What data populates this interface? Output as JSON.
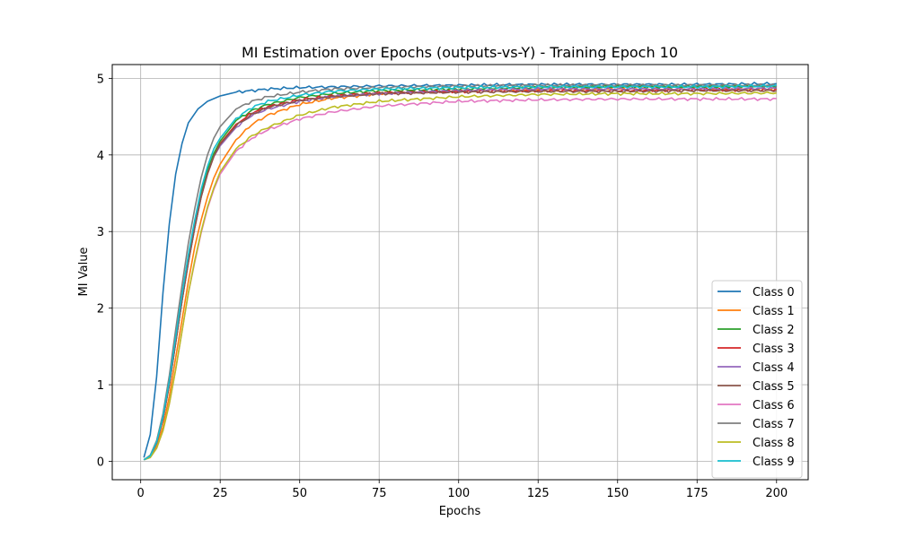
{
  "chart_data": {
    "type": "line",
    "title": "MI Estimation over Epochs (outputs-vs-Y) - Training Epoch 10",
    "xlabel": "Epochs",
    "ylabel": "MI Value",
    "xlim": [
      -8.95,
      209.95
    ],
    "ylim": [
      -0.24,
      5.18
    ],
    "xticks": [
      0,
      25,
      50,
      75,
      100,
      125,
      150,
      175,
      200
    ],
    "yticks": [
      0,
      1,
      2,
      3,
      4,
      5
    ],
    "grid": true,
    "legend_position": "lower-right",
    "x_range": [
      1,
      200
    ],
    "series": [
      {
        "name": "Class 0",
        "color": "#1f77b4",
        "values": [
          [
            1,
            0.05
          ],
          [
            3,
            0.35
          ],
          [
            5,
            1.1
          ],
          [
            7,
            2.2
          ],
          [
            9,
            3.1
          ],
          [
            11,
            3.75
          ],
          [
            13,
            4.15
          ],
          [
            15,
            4.42
          ],
          [
            18,
            4.6
          ],
          [
            21,
            4.7
          ],
          [
            25,
            4.77
          ],
          [
            30,
            4.82
          ],
          [
            40,
            4.86
          ],
          [
            50,
            4.88
          ],
          [
            75,
            4.9
          ],
          [
            100,
            4.91
          ],
          [
            125,
            4.92
          ],
          [
            150,
            4.92
          ],
          [
            175,
            4.92
          ],
          [
            200,
            4.93
          ]
        ]
      },
      {
        "name": "Class 1",
        "color": "#ff7f0e",
        "values": [
          [
            1,
            0.02
          ],
          [
            3,
            0.06
          ],
          [
            5,
            0.2
          ],
          [
            7,
            0.45
          ],
          [
            9,
            0.85
          ],
          [
            11,
            1.35
          ],
          [
            13,
            1.85
          ],
          [
            15,
            2.35
          ],
          [
            17,
            2.8
          ],
          [
            19,
            3.15
          ],
          [
            21,
            3.45
          ],
          [
            23,
            3.7
          ],
          [
            25,
            3.88
          ],
          [
            30,
            4.2
          ],
          [
            35,
            4.4
          ],
          [
            40,
            4.52
          ],
          [
            50,
            4.66
          ],
          [
            60,
            4.74
          ],
          [
            75,
            4.8
          ],
          [
            100,
            4.84
          ],
          [
            125,
            4.85
          ],
          [
            150,
            4.86
          ],
          [
            175,
            4.86
          ],
          [
            200,
            4.86
          ]
        ]
      },
      {
        "name": "Class 2",
        "color": "#2ca02c",
        "values": [
          [
            1,
            0.02
          ],
          [
            3,
            0.07
          ],
          [
            5,
            0.24
          ],
          [
            7,
            0.55
          ],
          [
            9,
            1.0
          ],
          [
            11,
            1.55
          ],
          [
            13,
            2.1
          ],
          [
            15,
            2.65
          ],
          [
            17,
            3.1
          ],
          [
            19,
            3.5
          ],
          [
            21,
            3.8
          ],
          [
            23,
            4.02
          ],
          [
            25,
            4.18
          ],
          [
            30,
            4.45
          ],
          [
            35,
            4.58
          ],
          [
            40,
            4.66
          ],
          [
            50,
            4.75
          ],
          [
            60,
            4.8
          ],
          [
            75,
            4.84
          ],
          [
            100,
            4.86
          ],
          [
            125,
            4.88
          ],
          [
            150,
            4.89
          ],
          [
            175,
            4.89
          ],
          [
            200,
            4.9
          ]
        ]
      },
      {
        "name": "Class 3",
        "color": "#d62728",
        "values": [
          [
            1,
            0.02
          ],
          [
            3,
            0.07
          ],
          [
            5,
            0.24
          ],
          [
            7,
            0.55
          ],
          [
            9,
            1.0
          ],
          [
            11,
            1.55
          ],
          [
            13,
            2.1
          ],
          [
            15,
            2.6
          ],
          [
            17,
            3.05
          ],
          [
            19,
            3.45
          ],
          [
            21,
            3.75
          ],
          [
            23,
            3.98
          ],
          [
            25,
            4.15
          ],
          [
            30,
            4.4
          ],
          [
            35,
            4.55
          ],
          [
            40,
            4.63
          ],
          [
            50,
            4.72
          ],
          [
            60,
            4.77
          ],
          [
            75,
            4.81
          ],
          [
            100,
            4.83
          ],
          [
            125,
            4.84
          ],
          [
            150,
            4.84
          ],
          [
            175,
            4.85
          ],
          [
            200,
            4.85
          ]
        ]
      },
      {
        "name": "Class 4",
        "color": "#9467bd",
        "values": [
          [
            1,
            0.02
          ],
          [
            3,
            0.07
          ],
          [
            5,
            0.24
          ],
          [
            7,
            0.55
          ],
          [
            9,
            1.0
          ],
          [
            11,
            1.55
          ],
          [
            13,
            2.1
          ],
          [
            15,
            2.6
          ],
          [
            17,
            3.05
          ],
          [
            19,
            3.45
          ],
          [
            21,
            3.75
          ],
          [
            23,
            3.98
          ],
          [
            25,
            4.12
          ],
          [
            30,
            4.36
          ],
          [
            35,
            4.52
          ],
          [
            40,
            4.6
          ],
          [
            50,
            4.7
          ],
          [
            60,
            4.76
          ],
          [
            75,
            4.8
          ],
          [
            100,
            4.84
          ],
          [
            125,
            4.86
          ],
          [
            150,
            4.86
          ],
          [
            175,
            4.86
          ],
          [
            200,
            4.87
          ]
        ]
      },
      {
        "name": "Class 5",
        "color": "#8c564b",
        "values": [
          [
            1,
            0.02
          ],
          [
            3,
            0.07
          ],
          [
            5,
            0.24
          ],
          [
            7,
            0.55
          ],
          [
            9,
            1.0
          ],
          [
            11,
            1.55
          ],
          [
            13,
            2.1
          ],
          [
            15,
            2.6
          ],
          [
            17,
            3.05
          ],
          [
            19,
            3.45
          ],
          [
            21,
            3.75
          ],
          [
            23,
            3.98
          ],
          [
            25,
            4.14
          ],
          [
            30,
            4.38
          ],
          [
            35,
            4.53
          ],
          [
            40,
            4.62
          ],
          [
            50,
            4.71
          ],
          [
            60,
            4.76
          ],
          [
            75,
            4.8
          ],
          [
            100,
            4.82
          ],
          [
            125,
            4.83
          ],
          [
            150,
            4.83
          ],
          [
            175,
            4.84
          ],
          [
            200,
            4.84
          ]
        ]
      },
      {
        "name": "Class 6",
        "color": "#e377c2",
        "values": [
          [
            1,
            0.02
          ],
          [
            3,
            0.05
          ],
          [
            5,
            0.17
          ],
          [
            7,
            0.4
          ],
          [
            9,
            0.75
          ],
          [
            11,
            1.2
          ],
          [
            13,
            1.7
          ],
          [
            15,
            2.2
          ],
          [
            17,
            2.6
          ],
          [
            19,
            2.98
          ],
          [
            21,
            3.3
          ],
          [
            23,
            3.55
          ],
          [
            25,
            3.75
          ],
          [
            30,
            4.05
          ],
          [
            35,
            4.22
          ],
          [
            40,
            4.33
          ],
          [
            50,
            4.47
          ],
          [
            60,
            4.56
          ],
          [
            75,
            4.64
          ],
          [
            100,
            4.7
          ],
          [
            125,
            4.72
          ],
          [
            150,
            4.73
          ],
          [
            175,
            4.73
          ],
          [
            200,
            4.73
          ]
        ]
      },
      {
        "name": "Class 7",
        "color": "#7f7f7f",
        "values": [
          [
            1,
            0.02
          ],
          [
            3,
            0.08
          ],
          [
            5,
            0.27
          ],
          [
            7,
            0.62
          ],
          [
            9,
            1.12
          ],
          [
            11,
            1.72
          ],
          [
            13,
            2.3
          ],
          [
            15,
            2.85
          ],
          [
            17,
            3.3
          ],
          [
            19,
            3.7
          ],
          [
            21,
            4.0
          ],
          [
            23,
            4.22
          ],
          [
            25,
            4.37
          ],
          [
            30,
            4.6
          ],
          [
            35,
            4.7
          ],
          [
            40,
            4.76
          ],
          [
            50,
            4.82
          ],
          [
            60,
            4.86
          ],
          [
            75,
            4.88
          ],
          [
            100,
            4.9
          ],
          [
            125,
            4.91
          ],
          [
            150,
            4.91
          ],
          [
            175,
            4.91
          ],
          [
            200,
            4.91
          ]
        ]
      },
      {
        "name": "Class 8",
        "color": "#bcbd22",
        "values": [
          [
            1,
            0.02
          ],
          [
            3,
            0.05
          ],
          [
            5,
            0.17
          ],
          [
            7,
            0.4
          ],
          [
            9,
            0.75
          ],
          [
            11,
            1.2
          ],
          [
            13,
            1.7
          ],
          [
            15,
            2.2
          ],
          [
            17,
            2.62
          ],
          [
            19,
            3.0
          ],
          [
            21,
            3.32
          ],
          [
            23,
            3.57
          ],
          [
            25,
            3.78
          ],
          [
            30,
            4.08
          ],
          [
            35,
            4.25
          ],
          [
            40,
            4.36
          ],
          [
            50,
            4.52
          ],
          [
            60,
            4.62
          ],
          [
            75,
            4.7
          ],
          [
            100,
            4.76
          ],
          [
            125,
            4.79
          ],
          [
            150,
            4.8
          ],
          [
            175,
            4.8
          ],
          [
            200,
            4.81
          ]
        ]
      },
      {
        "name": "Class 9",
        "color": "#17becf",
        "values": [
          [
            1,
            0.02
          ],
          [
            3,
            0.07
          ],
          [
            5,
            0.25
          ],
          [
            7,
            0.58
          ],
          [
            9,
            1.05
          ],
          [
            11,
            1.62
          ],
          [
            13,
            2.18
          ],
          [
            15,
            2.7
          ],
          [
            17,
            3.15
          ],
          [
            19,
            3.55
          ],
          [
            21,
            3.85
          ],
          [
            23,
            4.08
          ],
          [
            25,
            4.22
          ],
          [
            30,
            4.48
          ],
          [
            35,
            4.62
          ],
          [
            40,
            4.7
          ],
          [
            50,
            4.78
          ],
          [
            60,
            4.83
          ],
          [
            75,
            4.86
          ],
          [
            100,
            4.88
          ],
          [
            125,
            4.89
          ],
          [
            150,
            4.89
          ],
          [
            175,
            4.89
          ],
          [
            200,
            4.9
          ]
        ]
      }
    ]
  }
}
